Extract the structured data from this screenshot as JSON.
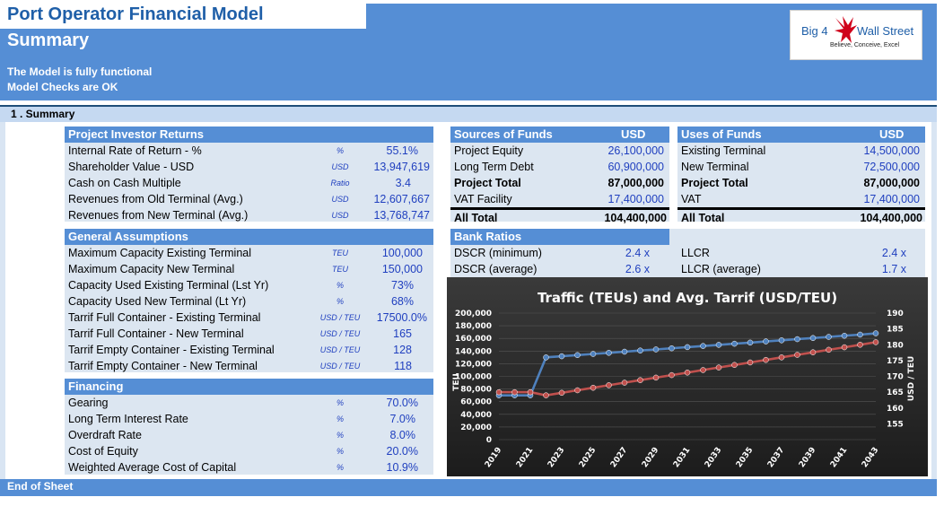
{
  "header": {
    "model_title": "Port Operator Financial Model",
    "sheet_title": "Summary",
    "status_line1": "The Model is fully functional",
    "status_line2": "Model Checks are OK"
  },
  "logo": {
    "left": "Big 4",
    "right": "Wall Street",
    "tagline": "Believe, Conceive, Excel"
  },
  "section": {
    "label": "1 . Summary"
  },
  "investor_returns": {
    "title": "Project Investor Returns",
    "rows": [
      {
        "label": "Internal Rate of Return - %",
        "unit": "%",
        "value": "55.1%"
      },
      {
        "label": "Shareholder Value - USD",
        "unit": "USD",
        "value": "13,947,619"
      },
      {
        "label": "Cash on Cash Multiple",
        "unit": "Ratio",
        "value": "3.4"
      },
      {
        "label": "Revenues from Old Terminal (Avg.)",
        "unit": "USD",
        "value": "12,607,667"
      },
      {
        "label": "Revenues from New Terminal (Avg.)",
        "unit": "USD",
        "value": "13,768,747"
      }
    ]
  },
  "general_assumptions": {
    "title": "General Assumptions",
    "rows": [
      {
        "label": "Maximum Capacity Existing Terminal",
        "unit": "TEU",
        "value": "100,000"
      },
      {
        "label": "Maximum Capacity New Terminal",
        "unit": "TEU",
        "value": "150,000"
      },
      {
        "label": "Capacity Used Existing Terminal (Lst Yr)",
        "unit": "%",
        "value": "73%"
      },
      {
        "label": "Capacity Used New Terminal (Lt Yr)",
        "unit": "%",
        "value": "68%"
      },
      {
        "label": "Tarrif Full Container - Existing Terminal",
        "unit": "USD / TEU",
        "value": "17500.0%"
      },
      {
        "label": "Tarrif Full Container - New Terminal",
        "unit": "USD / TEU",
        "value": "165"
      },
      {
        "label": "Tarrif Empty Container - Existing Terminal",
        "unit": "USD / TEU",
        "value": "128"
      },
      {
        "label": "Tarrif Empty Container - New Terminal",
        "unit": "USD / TEU",
        "value": "118"
      }
    ]
  },
  "financing": {
    "title": "Financing",
    "rows": [
      {
        "label": "Gearing",
        "unit": "%",
        "value": "70.0%"
      },
      {
        "label": "Long Term Interest Rate",
        "unit": "%",
        "value": "7.0%"
      },
      {
        "label": "Overdraft Rate",
        "unit": "%",
        "value": "8.0%"
      },
      {
        "label": "Cost of Equity",
        "unit": "%",
        "value": "20.0%"
      },
      {
        "label": "Weighted Average Cost of Capital",
        "unit": "%",
        "value": "10.9%"
      }
    ]
  },
  "sources": {
    "title": "Sources of Funds",
    "currency": "USD",
    "rows": [
      {
        "label": "Project Equity",
        "value": "26,100,000"
      },
      {
        "label": "Long Term Debt",
        "value": "60,900,000"
      },
      {
        "label": "Project Total",
        "value": "87,000,000"
      },
      {
        "label": "VAT Facility",
        "value": "17,400,000"
      },
      {
        "label": "All Total",
        "value": "104,400,000"
      }
    ]
  },
  "uses": {
    "title": "Uses of Funds",
    "currency": "USD",
    "rows": [
      {
        "label": "Existing Terminal",
        "value": "14,500,000"
      },
      {
        "label": "New Terminal",
        "value": "72,500,000"
      },
      {
        "label": "Project Total",
        "value": "87,000,000"
      },
      {
        "label": "VAT",
        "value": "17,400,000"
      },
      {
        "label": "All Total",
        "value": "104,400,000"
      }
    ]
  },
  "bank_ratios": {
    "title": "Bank Ratios",
    "rows": [
      {
        "label": "DSCR (minimum)",
        "value": "2.4 x",
        "label2": "LLCR",
        "value2": "2.4 x"
      },
      {
        "label": "DSCR (average)",
        "value": "2.6 x",
        "label2": "LLCR (average)",
        "value2": "1.7 x"
      }
    ]
  },
  "colors": {
    "header_blue": "#558ed5",
    "panel_blue": "#dce6f1",
    "value_blue": "#1f3fbf",
    "traffic_series": "#4f81bd",
    "tariff_series": "#c0504d"
  },
  "chart_data": {
    "type": "line",
    "title": "Traffic (TEUs) and Avg. Tarrif (USD/TEU)",
    "xlabel": "",
    "ylabel": "TEU",
    "y2label": "USD / TEU",
    "x_tick_labels": [
      "2019",
      "2021",
      "2023",
      "2025",
      "2027",
      "2029",
      "2031",
      "2033",
      "2035",
      "2037",
      "2039",
      "2041",
      "2043"
    ],
    "x": [
      2019,
      2020,
      2021,
      2022,
      2023,
      2024,
      2025,
      2026,
      2027,
      2028,
      2029,
      2030,
      2031,
      2032,
      2033,
      2034,
      2035,
      2036,
      2037,
      2038,
      2039,
      2040,
      2041,
      2042,
      2043
    ],
    "ylim": [
      0,
      200000
    ],
    "y_ticks": [
      "0",
      "20,000",
      "40,000",
      "60,000",
      "80,000",
      "100,000",
      "120,000",
      "140,000",
      "160,000",
      "180,000",
      "200,000"
    ],
    "y2lim": [
      150,
      190
    ],
    "y2_ticks": [
      "155",
      "160",
      "165",
      "170",
      "175",
      "180",
      "185",
      "190"
    ],
    "grid": true,
    "series": [
      {
        "axis": "left",
        "values": [
          70000,
          70000,
          70000,
          130000,
          131800,
          133600,
          135400,
          137200,
          139000,
          140800,
          142600,
          144400,
          146200,
          148000,
          149800,
          151600,
          153400,
          155200,
          157000,
          158800,
          160600,
          162400,
          164200,
          166000,
          168000
        ]
      },
      {
        "axis": "right",
        "values": [
          165.0,
          165.0,
          165.0,
          164.0,
          164.8,
          165.6,
          166.4,
          167.2,
          168.0,
          168.8,
          169.6,
          170.4,
          171.2,
          172.0,
          172.8,
          173.6,
          174.4,
          175.2,
          176.0,
          176.8,
          177.6,
          178.4,
          179.2,
          180.0,
          180.8
        ]
      }
    ]
  },
  "footer": {
    "label": "End of Sheet"
  }
}
